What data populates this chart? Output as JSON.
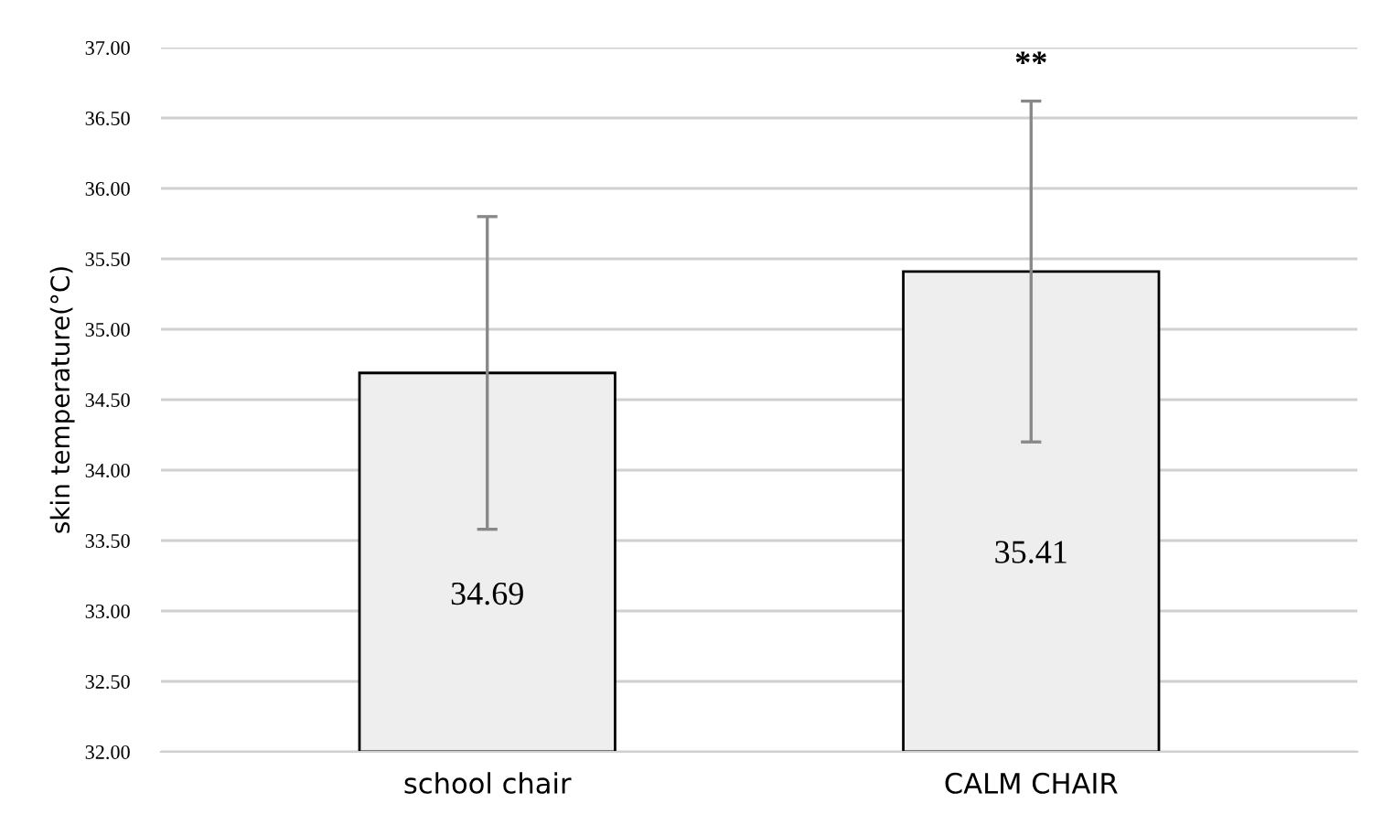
{
  "chart_data": {
    "type": "bar",
    "ylabel": "skin temperature(°C)",
    "categories": [
      "school chair",
      "CALM CHAIR"
    ],
    "values": [
      34.69,
      35.41
    ],
    "errors": [
      1.11,
      1.21
    ],
    "color": "#eeeeee",
    "data_labels": true,
    "ylim": [
      32,
      37
    ],
    "yticks": [
      {
        "value": 32,
        "label": "32.00"
      },
      {
        "value": 32.5,
        "label": "32.50"
      },
      {
        "value": 33,
        "label": "33.00"
      },
      {
        "value": 33.5,
        "label": "33.50"
      },
      {
        "value": 34,
        "label": "34.00"
      },
      {
        "value": 34.5,
        "label": "34.50"
      },
      {
        "value": 35,
        "label": "35.00"
      },
      {
        "value": 35.5,
        "label": "35.50"
      },
      {
        "value": 36,
        "label": "36.00"
      },
      {
        "value": 36.5,
        "label": "36.50"
      },
      {
        "value": 37,
        "label": "37.00"
      }
    ],
    "grid": "y",
    "legend": false,
    "annotations": [
      "**"
    ]
  }
}
